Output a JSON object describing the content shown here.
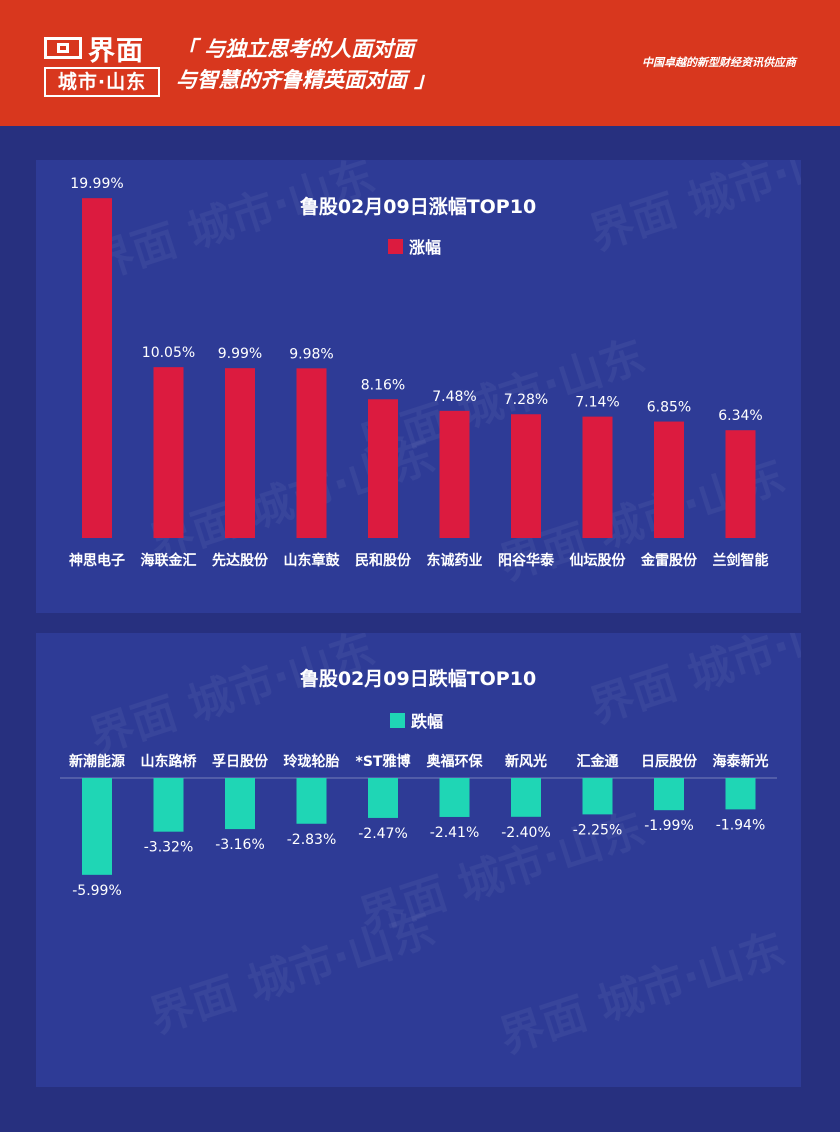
{
  "header": {
    "logo_top": "界面",
    "logo_bottom": "城市·山东",
    "slogan_line1": "「 与独立思考的人面对面",
    "slogan_line2": "与智慧的齐鲁精英面对面 」",
    "tagline": "中国卓越的新型财经资讯供应商"
  },
  "watermark": "界面 城市·山东",
  "colors": {
    "header_bg": "#d8371e",
    "page_bg": "#27307f",
    "panel_bg": "#2e3b96",
    "gain_bar": "#dc1b3f",
    "loss_bar": "#1fd6b5",
    "text": "#ffffff"
  },
  "chart_data": [
    {
      "type": "bar",
      "title": "鲁股02月09日涨幅TOP10",
      "legend": "涨幅",
      "categories": [
        "神思电子",
        "海联金汇",
        "先达股份",
        "山东章鼓",
        "民和股份",
        "东诚药业",
        "阳谷华泰",
        "仙坛股份",
        "金雷股份",
        "兰剑智能"
      ],
      "values": [
        19.99,
        10.05,
        9.99,
        9.98,
        8.16,
        7.48,
        7.28,
        7.14,
        6.85,
        6.34
      ],
      "labels": [
        "19.99%",
        "10.05%",
        "9.99%",
        "9.98%",
        "8.16%",
        "7.48%",
        "7.28%",
        "7.14%",
        "6.85%",
        "6.34%"
      ],
      "unit": "%"
    },
    {
      "type": "bar",
      "title": "鲁股02月09日跌幅TOP10",
      "legend": "跌幅",
      "categories": [
        "新潮能源",
        "山东路桥",
        "孚日股份",
        "玲珑轮胎",
        "*ST雅博",
        "奥福环保",
        "新风光",
        "汇金通",
        "日辰股份",
        "海泰新光"
      ],
      "values": [
        -5.99,
        -3.32,
        -3.16,
        -2.83,
        -2.47,
        -2.41,
        -2.4,
        -2.25,
        -1.99,
        -1.94
      ],
      "labels": [
        "-5.99%",
        "-3.32%",
        "-3.16%",
        "-2.83%",
        "-2.47%",
        "-2.41%",
        "-2.40%",
        "-2.25%",
        "-1.99%",
        "-1.94%"
      ],
      "unit": "%"
    }
  ]
}
